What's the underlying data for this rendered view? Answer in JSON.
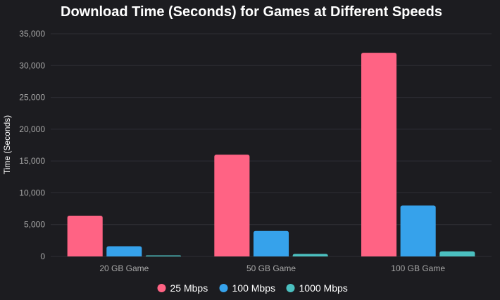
{
  "chart_data": {
    "type": "bar",
    "title": "Download Time (Seconds) for Games at Different Speeds",
    "xlabel": "",
    "ylabel": "Time (Seconds)",
    "ylim": [
      0,
      35000
    ],
    "yticks": [
      0,
      5000,
      10000,
      15000,
      20000,
      25000,
      30000,
      35000
    ],
    "ytick_labels": [
      "0",
      "5,000",
      "10,000",
      "15,000",
      "20,000",
      "25,000",
      "30,000",
      "35,000"
    ],
    "categories": [
      "20 GB Game",
      "50 GB Game",
      "100 GB Game"
    ],
    "series": [
      {
        "name": "25 Mbps",
        "color": "#ff6384",
        "values": [
          6400,
          16000,
          32000
        ]
      },
      {
        "name": "100 Mbps",
        "color": "#36a2eb",
        "values": [
          1600,
          4000,
          8000
        ]
      },
      {
        "name": "1000 Mbps",
        "color": "#4bc0c0",
        "values": [
          160,
          400,
          800
        ]
      }
    ],
    "grid": true,
    "legend_position": "bottom"
  }
}
